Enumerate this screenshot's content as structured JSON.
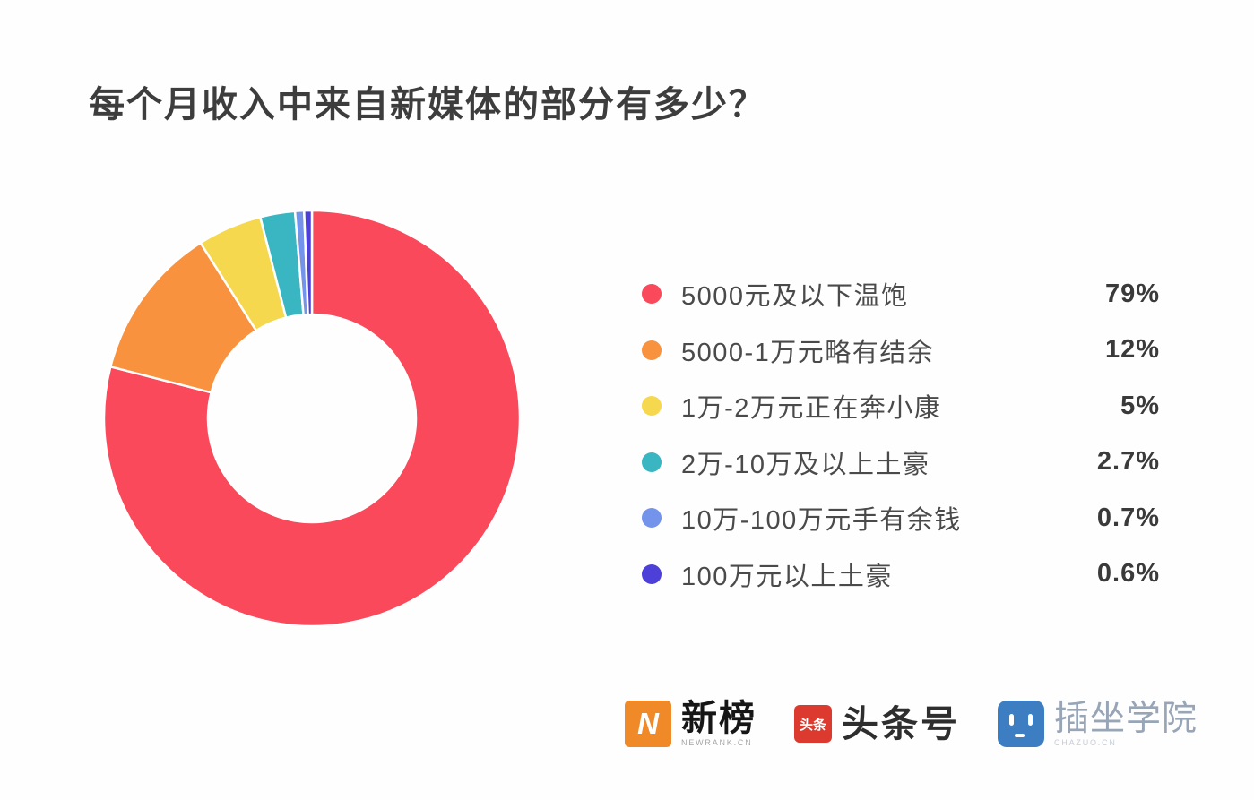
{
  "title": "每个月收入中来自新媒体的部分有多少？",
  "chart_data": {
    "type": "pie",
    "subtype": "donut",
    "title": "每个月收入中来自新媒体的部分有多少？",
    "start_angle_deg": 0,
    "direction": "clockwise",
    "inner_radius_ratio": 0.5,
    "legend_position": "right",
    "separator_color": "#ffffff",
    "series": [
      {
        "label": "5000元及以下温饱",
        "value": 79,
        "display": "79%",
        "color": "#f9495a"
      },
      {
        "label": "5000-1万元略有结余",
        "value": 12,
        "display": "12%",
        "color": "#f8923f"
      },
      {
        "label": "1万-2万元正在奔小康",
        "value": 5,
        "display": "5%",
        "color": "#f6d84e"
      },
      {
        "label": "2万-10万及以上土豪",
        "value": 2.7,
        "display": "2.7%",
        "color": "#3ab6c2"
      },
      {
        "label": "10万-100万元手有余钱",
        "value": 0.7,
        "display": "0.7%",
        "color": "#7494eb"
      },
      {
        "label": "100万元以上土豪",
        "value": 0.6,
        "display": "0.6%",
        "color": "#4c40d9"
      }
    ]
  },
  "footer": {
    "brands": [
      {
        "name": "新榜",
        "caption": "NEWRANK.CN",
        "icon_text": "N",
        "icon_color": "#f08a28"
      },
      {
        "name": "头条号",
        "caption": "",
        "icon_text": "头条",
        "icon_color": "#dc3a2f"
      },
      {
        "name": "插坐学院",
        "caption": "CHAZUO.CN",
        "icon_text": "",
        "icon_color": "#3d7ec2"
      }
    ]
  }
}
